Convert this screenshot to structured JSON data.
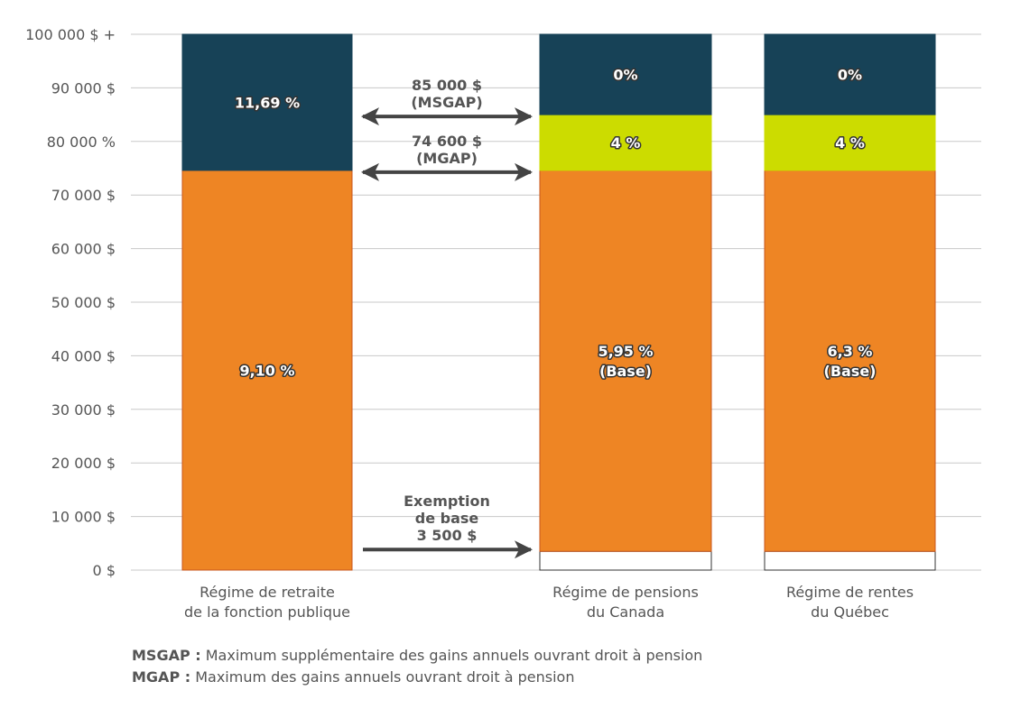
{
  "chart_data": {
    "type": "bar",
    "stacked": true,
    "ylim": [
      0,
      100000
    ],
    "yticks": [
      0,
      10000,
      20000,
      30000,
      40000,
      50000,
      60000,
      70000,
      80000,
      90000,
      100000
    ],
    "ytick_labels": [
      "0 $",
      "10 000 $",
      "20 000 $",
      "30 000 $",
      "40 000 $",
      "50 000 $",
      "60 000 $",
      "70 000 $",
      "80 000 %",
      "90 000 $",
      "100 000 $ +"
    ],
    "grid": true,
    "categories": [
      [
        "Régime de retraite",
        "de la fonction publique"
      ],
      [
        "Régime de pensions",
        "du Canada"
      ],
      [
        "Régime de rentes",
        "du Québec"
      ]
    ],
    "colors": {
      "navy": "#174257",
      "orange": "#EE8524",
      "green": "#CCDC00",
      "white": "#FFFFFF"
    },
    "bars": [
      {
        "segments": [
          {
            "from": 0,
            "to": 74600,
            "color": "orange",
            "label": [
              "9,10 %"
            ]
          },
          {
            "from": 74600,
            "to": 100000,
            "color": "navy",
            "label": [
              "11,69 %"
            ]
          }
        ]
      },
      {
        "segments": [
          {
            "from": 0,
            "to": 3500,
            "color": "white",
            "label": []
          },
          {
            "from": 3500,
            "to": 74600,
            "color": "orange",
            "label": [
              "5,95 %",
              "(Base)"
            ]
          },
          {
            "from": 74600,
            "to": 85000,
            "color": "green",
            "label": [
              "4 %"
            ]
          },
          {
            "from": 85000,
            "to": 100000,
            "color": "navy",
            "label": [
              "0%"
            ]
          }
        ]
      },
      {
        "segments": [
          {
            "from": 0,
            "to": 3500,
            "color": "white",
            "label": []
          },
          {
            "from": 3500,
            "to": 74600,
            "color": "orange",
            "label": [
              "6,3 %",
              "(Base)"
            ]
          },
          {
            "from": 74600,
            "to": 85000,
            "color": "green",
            "label": [
              "4 %"
            ]
          },
          {
            "from": 85000,
            "to": 100000,
            "color": "navy",
            "label": [
              "0%"
            ]
          }
        ]
      }
    ],
    "annotations": [
      {
        "text": [
          "85 000 $",
          "(MSGAP)"
        ],
        "y": 85000,
        "arrow": "double"
      },
      {
        "text": [
          "74 600 $",
          "(MGAP)"
        ],
        "y": 74600,
        "arrow": "double"
      },
      {
        "text": [
          "Exemption",
          "de base",
          "3 500 $"
        ],
        "y": 3500,
        "arrow": "right"
      }
    ]
  },
  "notes": [
    {
      "term": "MSGAP :",
      "definition": " Maximum supplémentaire des gains annuels ouvrant droit à pension"
    },
    {
      "term": "MGAP :",
      "definition": " Maximum des gains annuels ouvrant droit à pension"
    }
  ]
}
